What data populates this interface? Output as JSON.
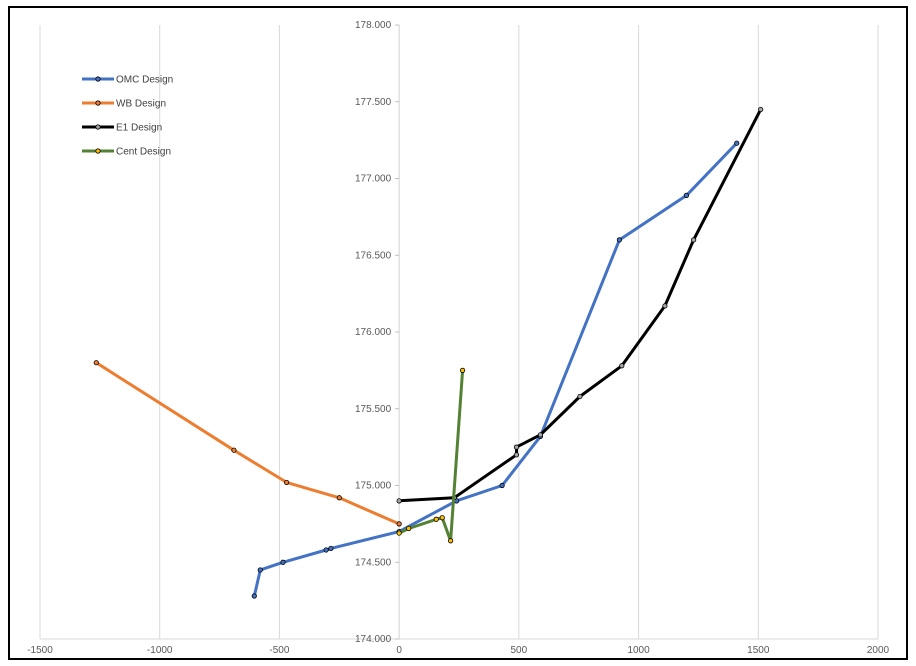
{
  "chart_data": {
    "type": "scatter",
    "xlim": [
      -1500,
      2000
    ],
    "ylim": [
      174.0,
      178.0
    ],
    "x_ticks": [
      -1500,
      -1000,
      -500,
      0,
      500,
      1000,
      1500,
      2000
    ],
    "y_ticks": [
      174.0,
      174.5,
      175.0,
      175.5,
      176.0,
      176.5,
      177.0,
      177.5,
      178.0
    ],
    "x_tick_labels": [
      "-1500",
      "-1000",
      "-500",
      "0",
      "500",
      "1000",
      "1500",
      "2000"
    ],
    "y_tick_labels": [
      "174.000",
      "174.500",
      "175.000",
      "175.500",
      "176.000",
      "176.500",
      "177.000",
      "177.500",
      "178.000"
    ],
    "grid": "vertical",
    "legend_position": "top-left",
    "series": [
      {
        "name": "OMC Design",
        "color": "#4472C4",
        "marker_fill": "#4472C4",
        "points": [
          [
            -605,
            174.28
          ],
          [
            -580,
            174.45
          ],
          [
            -485,
            174.5
          ],
          [
            -305,
            174.58
          ],
          [
            -285,
            174.59
          ],
          [
            0,
            174.7
          ],
          [
            240,
            174.9
          ],
          [
            430,
            175.0
          ],
          [
            590,
            175.32
          ],
          [
            920,
            176.6
          ],
          [
            1200,
            176.89
          ],
          [
            1410,
            177.23
          ]
        ]
      },
      {
        "name": "WB Design",
        "color": "#ED7D31",
        "marker_fill": "#ED7D31",
        "points": [
          [
            -1265,
            175.8
          ],
          [
            -690,
            175.23
          ],
          [
            -470,
            175.02
          ],
          [
            -250,
            174.92
          ],
          [
            0,
            174.75
          ]
        ]
      },
      {
        "name": "E1 Design",
        "color": "#000000",
        "marker_fill": "#A5A5A5",
        "points": [
          [
            0,
            174.9
          ],
          [
            230,
            174.92
          ],
          [
            490,
            175.2
          ],
          [
            490,
            175.25
          ],
          [
            590,
            175.33
          ],
          [
            755,
            175.58
          ],
          [
            930,
            175.78
          ],
          [
            1110,
            176.17
          ],
          [
            1230,
            176.6
          ],
          [
            1510,
            177.45
          ]
        ]
      },
      {
        "name": "Cent Design",
        "color": "#548235",
        "marker_fill": "#FFC000",
        "points": [
          [
            0,
            174.69
          ],
          [
            40,
            174.72
          ],
          [
            155,
            174.78
          ],
          [
            180,
            174.79
          ],
          [
            215,
            174.64
          ],
          [
            265,
            175.75
          ]
        ]
      }
    ]
  }
}
